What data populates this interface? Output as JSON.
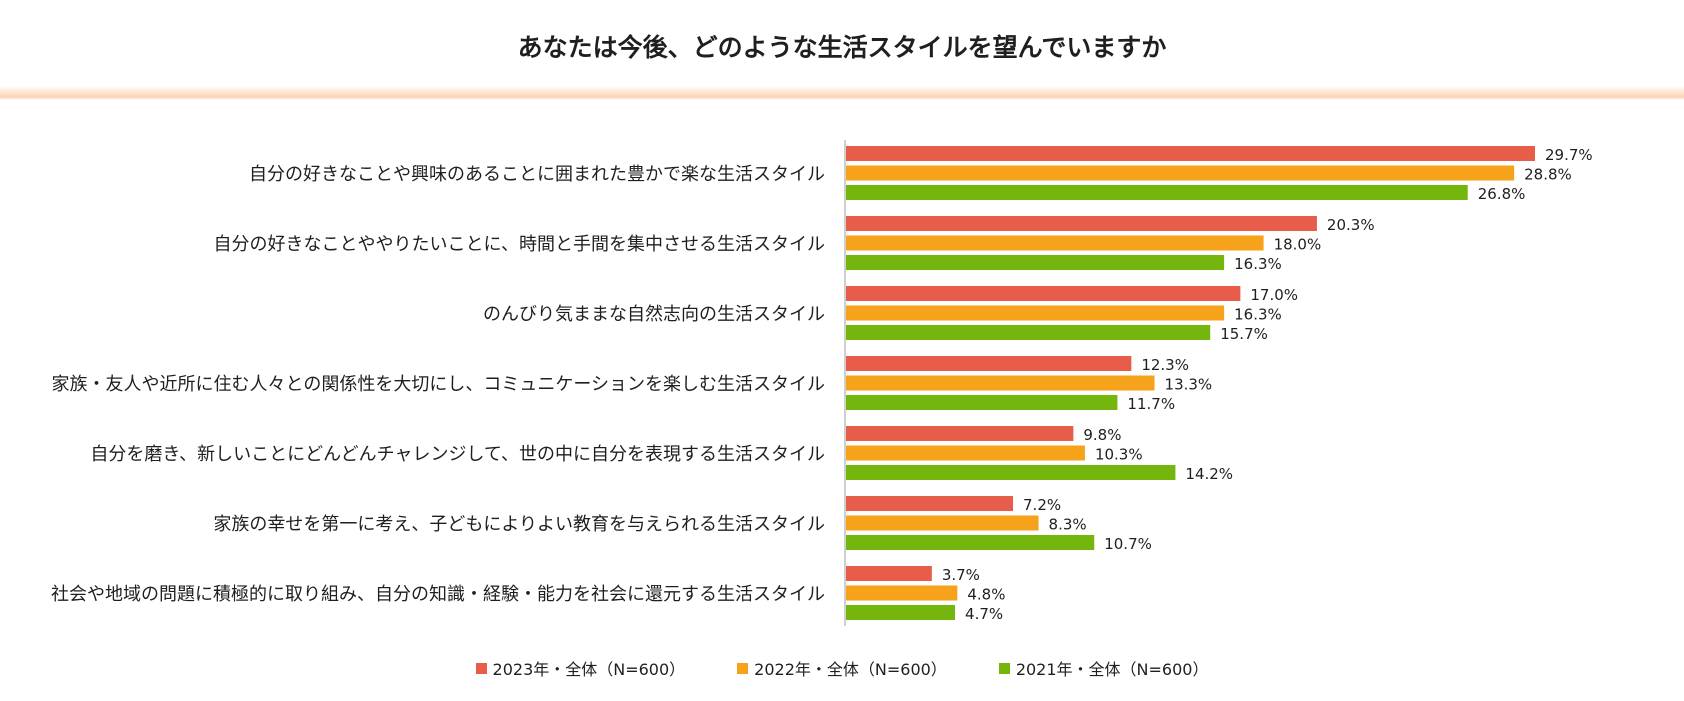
{
  "chart_data": {
    "type": "bar",
    "orientation": "horizontal",
    "title": "あなたは今後、どのような生活スタイルを望んでいますか",
    "categories": [
      "自分の好きなことや興味のあることに囲まれた豊かで楽な生活スタイル",
      "自分の好きなことややりたいことに、時間と手間を集中させる生活スタイル",
      "のんびり気ままな自然志向の生活スタイル",
      "家族・友人や近所に住む人々との関係性を大切にし、コミュニケーションを楽しむ生活スタイル",
      "自分を磨き、新しいことにどんどんチャレンジして、世の中に自分を表現する生活スタイル",
      "家族の幸せを第一に考え、子どもによりよい教育を与えられる生活スタイル",
      "社会や地域の問題に積極的に取り組み、自分の知識・経験・能力を社会に還元する生活スタイル"
    ],
    "series": [
      {
        "name": "2023年・全体（N=600）",
        "color": "#e85c4a",
        "values": [
          29.7,
          20.3,
          17.0,
          12.3,
          9.8,
          7.2,
          3.7
        ]
      },
      {
        "name": "2022年・全体（N=600）",
        "color": "#f7a21b",
        "values": [
          28.8,
          18.0,
          16.3,
          13.3,
          10.3,
          8.3,
          4.8
        ]
      },
      {
        "name": "2021年・全体（N=600）",
        "color": "#74b60d",
        "values": [
          26.8,
          16.3,
          15.7,
          11.7,
          14.2,
          10.7,
          4.7
        ]
      }
    ],
    "value_suffix": "%",
    "xlim": [
      0,
      30
    ],
    "axis_line_color": "#bfbfbf",
    "legend_position": "bottom"
  }
}
